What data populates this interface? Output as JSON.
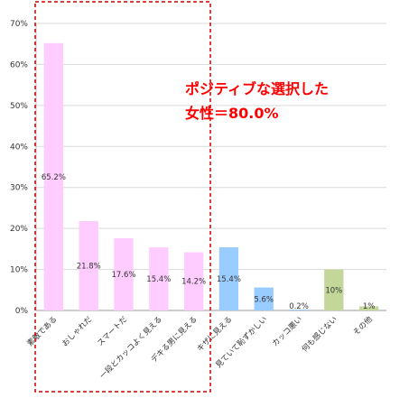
{
  "chart_data": {
    "type": "bar",
    "title": "",
    "xlabel": "",
    "ylabel": "",
    "categories": [
      "素敵である",
      "おしゃれだ",
      "スマートだ",
      "一段とカッコよく見える",
      "デキる男に見える",
      "キザに見える",
      "見ていて恥ずかしい",
      "カッコ悪い",
      "何も感じない",
      "その他"
    ],
    "values": [
      65.2,
      21.8,
      17.6,
      15.4,
      14.2,
      15.4,
      5.6,
      0.2,
      10,
      1
    ],
    "data_labels": [
      "65.2%",
      "21.8%",
      "17.6%",
      "15.4%",
      "14.2%",
      "15.4%",
      "5.6%",
      "0.2%",
      "10%",
      "1%"
    ],
    "bar_colors": [
      "#ffccff",
      "#ffccff",
      "#ffccff",
      "#ffccff",
      "#ffccff",
      "#99ccff",
      "#99ccff",
      "#99ccff",
      "#c4d79b",
      "#c4d79b"
    ],
    "ylim": [
      0,
      70
    ],
    "yticks": [
      0,
      10,
      20,
      30,
      40,
      50,
      60,
      70
    ],
    "ytick_labels": [
      "0%",
      "10%",
      "20%",
      "30%",
      "40%",
      "50%",
      "60%",
      "70%"
    ],
    "grid": true,
    "legend": "none",
    "highlight_box": {
      "covers_categories": [
        0,
        1,
        2,
        3,
        4
      ],
      "color": "#cc0000",
      "style": "dashed"
    },
    "annotation": {
      "line1": "ポジティブな選択した",
      "line2": "女性＝80.0%",
      "color": "#ff0000"
    }
  }
}
